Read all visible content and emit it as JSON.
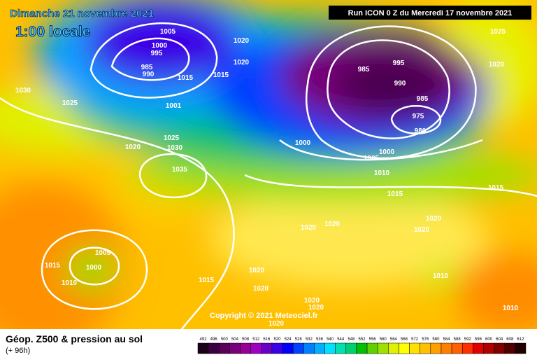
{
  "header": {
    "date": "Dimanche 21 novembre 2021",
    "time": "1:00 locale",
    "run": "Run ICON 0 Z du Mercredi 17 novembre 2021"
  },
  "copyright": "Copyright © 2021 Meteociel.fr",
  "footer": {
    "title": "Géop. Z500 & pression au sol",
    "lead": "(+ 96h)"
  },
  "scale": {
    "labels": [
      492,
      496,
      500,
      504,
      508,
      512,
      516,
      520,
      524,
      528,
      532,
      536,
      540,
      544,
      548,
      552,
      556,
      560,
      564,
      568,
      572,
      576,
      580,
      584,
      588,
      592,
      596,
      600,
      604,
      608,
      612
    ],
    "colors": [
      "#1a001a",
      "#3c0040",
      "#5a005a",
      "#780078",
      "#960096",
      "#a000c0",
      "#6a00c8",
      "#3c00e6",
      "#0000ff",
      "#0040ff",
      "#0080ff",
      "#00b0ff",
      "#00e0ff",
      "#00e0b0",
      "#00d070",
      "#00c000",
      "#60d000",
      "#a0e000",
      "#e0f000",
      "#ffff00",
      "#ffe000",
      "#ffc000",
      "#ffa000",
      "#ff8000",
      "#ff6000",
      "#ff3000",
      "#e00000",
      "#b00000",
      "#800000",
      "#500000",
      "#200000"
    ]
  },
  "isobars": [
    "1005",
    "1000",
    "995",
    "985",
    "990",
    "1015",
    "1020",
    "1020",
    "1015",
    "1001",
    "1030",
    "1025",
    "1025",
    "1030",
    "1020",
    "1035",
    "985",
    "995",
    "990",
    "985",
    "975",
    "980",
    "1000",
    "1000",
    "1005",
    "1010",
    "1015",
    "1025",
    "1020",
    "1015",
    "1005",
    "1000",
    "1015",
    "1010",
    "1015",
    "1020",
    "1020",
    "1020",
    "1020",
    "1020",
    "1020",
    "1010",
    "1010",
    "1020",
    "1020",
    "1020"
  ]
}
